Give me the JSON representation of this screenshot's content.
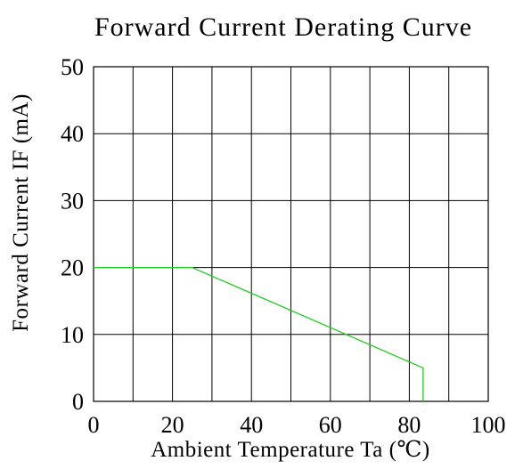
{
  "chart_data": {
    "type": "line",
    "title": "Forward Current Derating Curve",
    "xlabel": "Ambient Temperature Ta (℃)",
    "ylabel": "Forward Current IF (mA)",
    "xlim": [
      0,
      100
    ],
    "ylim": [
      0,
      50
    ],
    "x_ticks": [
      0,
      20,
      40,
      60,
      80,
      100
    ],
    "y_ticks": [
      0,
      10,
      20,
      30,
      40,
      50
    ],
    "x_tick_labels": [
      "0",
      "20",
      "40",
      "60",
      "80",
      "100"
    ],
    "y_tick_labels": [
      "0",
      "10",
      "20",
      "30",
      "40",
      "50"
    ],
    "x_grid_step": 10,
    "y_grid_step": 10,
    "grid": true,
    "series": [
      {
        "color": "#22cc22",
        "points": [
          {
            "x": 0,
            "y": 20
          },
          {
            "x": 25,
            "y": 20
          },
          {
            "x": 83.5,
            "y": 5
          },
          {
            "x": 83.5,
            "y": 0
          }
        ]
      }
    ]
  }
}
